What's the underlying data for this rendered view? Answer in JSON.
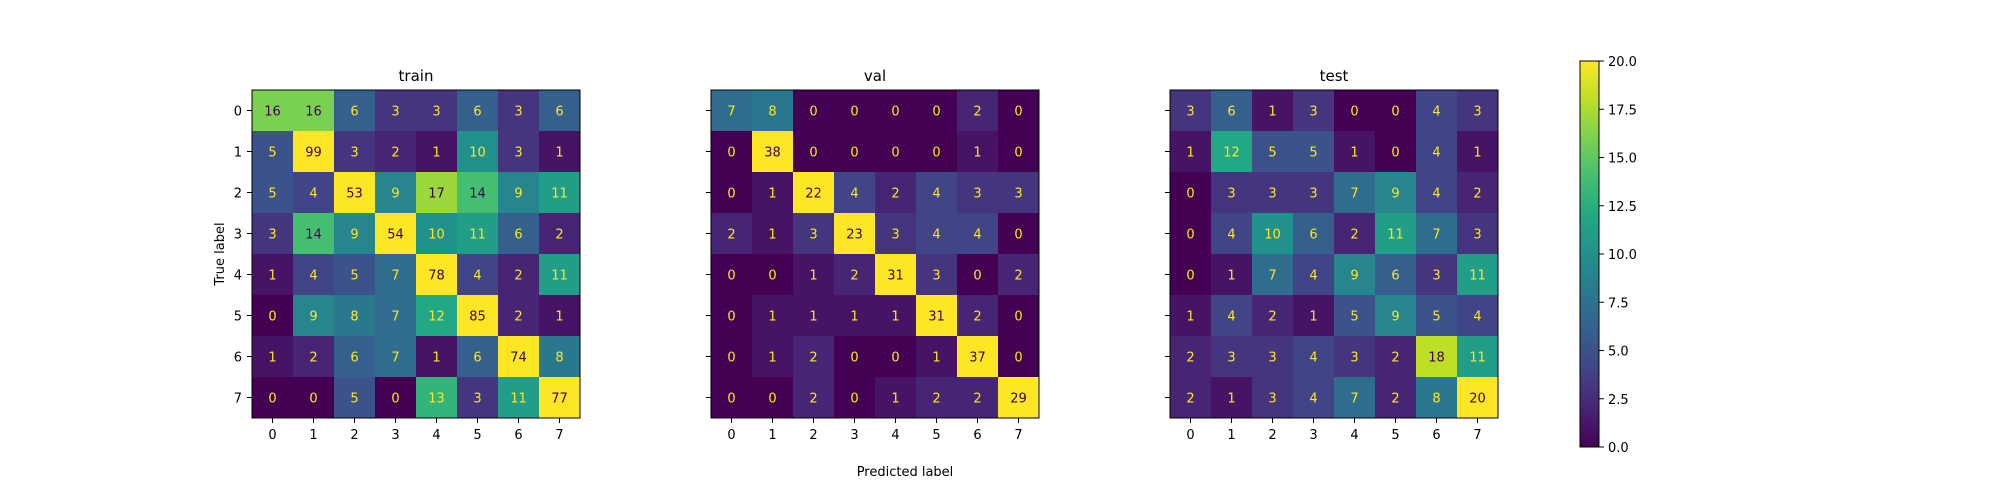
{
  "chart_data": [
    {
      "type": "heatmap",
      "title": "train",
      "xlabel": "Predicted label",
      "ylabel": "True label",
      "x_categories": [
        "0",
        "1",
        "2",
        "3",
        "4",
        "5",
        "6",
        "7"
      ],
      "y_categories": [
        "0",
        "1",
        "2",
        "3",
        "4",
        "5",
        "6",
        "7"
      ],
      "values": [
        [
          16,
          16,
          6,
          3,
          3,
          6,
          3,
          6
        ],
        [
          5,
          99,
          3,
          2,
          1,
          10,
          3,
          1
        ],
        [
          5,
          4,
          53,
          9,
          17,
          14,
          9,
          11
        ],
        [
          3,
          14,
          9,
          54,
          10,
          11,
          6,
          2
        ],
        [
          1,
          4,
          5,
          7,
          78,
          4,
          2,
          11
        ],
        [
          0,
          9,
          8,
          7,
          12,
          85,
          2,
          1
        ],
        [
          1,
          2,
          6,
          7,
          1,
          6,
          74,
          8
        ],
        [
          0,
          0,
          5,
          0,
          13,
          3,
          11,
          77
        ]
      ]
    },
    {
      "type": "heatmap",
      "title": "val",
      "x_categories": [
        "0",
        "1",
        "2",
        "3",
        "4",
        "5",
        "6",
        "7"
      ],
      "y_categories": [
        "0",
        "1",
        "2",
        "3",
        "4",
        "5",
        "6",
        "7"
      ],
      "values": [
        [
          7,
          8,
          0,
          0,
          0,
          0,
          2,
          0
        ],
        [
          0,
          38,
          0,
          0,
          0,
          0,
          1,
          0
        ],
        [
          0,
          1,
          22,
          4,
          2,
          4,
          3,
          3
        ],
        [
          2,
          1,
          3,
          23,
          3,
          4,
          4,
          0
        ],
        [
          0,
          0,
          1,
          2,
          31,
          3,
          0,
          2
        ],
        [
          0,
          1,
          1,
          1,
          1,
          31,
          2,
          0
        ],
        [
          0,
          1,
          2,
          0,
          0,
          1,
          37,
          0
        ],
        [
          0,
          0,
          2,
          0,
          1,
          2,
          2,
          29
        ]
      ]
    },
    {
      "type": "heatmap",
      "title": "test",
      "x_categories": [
        "0",
        "1",
        "2",
        "3",
        "4",
        "5",
        "6",
        "7"
      ],
      "y_categories": [
        "0",
        "1",
        "2",
        "3",
        "4",
        "5",
        "6",
        "7"
      ],
      "values": [
        [
          3,
          6,
          1,
          3,
          0,
          0,
          4,
          3
        ],
        [
          1,
          12,
          5,
          5,
          1,
          0,
          4,
          1
        ],
        [
          0,
          3,
          3,
          3,
          7,
          9,
          4,
          2
        ],
        [
          0,
          4,
          10,
          6,
          2,
          11,
          7,
          3
        ],
        [
          0,
          1,
          7,
          4,
          9,
          6,
          3,
          11
        ],
        [
          1,
          4,
          2,
          1,
          5,
          9,
          5,
          4
        ],
        [
          2,
          3,
          3,
          4,
          3,
          2,
          18,
          11
        ],
        [
          2,
          1,
          3,
          4,
          7,
          2,
          8,
          20
        ]
      ]
    }
  ],
  "colorbar": {
    "colormap": "viridis",
    "vmin": 0,
    "vmax": 20,
    "ticks": [
      "0.0",
      "2.5",
      "5.0",
      "7.5",
      "10.0",
      "12.5",
      "15.0",
      "17.5",
      "20.0"
    ]
  },
  "shared_xlabel": "Predicted label"
}
